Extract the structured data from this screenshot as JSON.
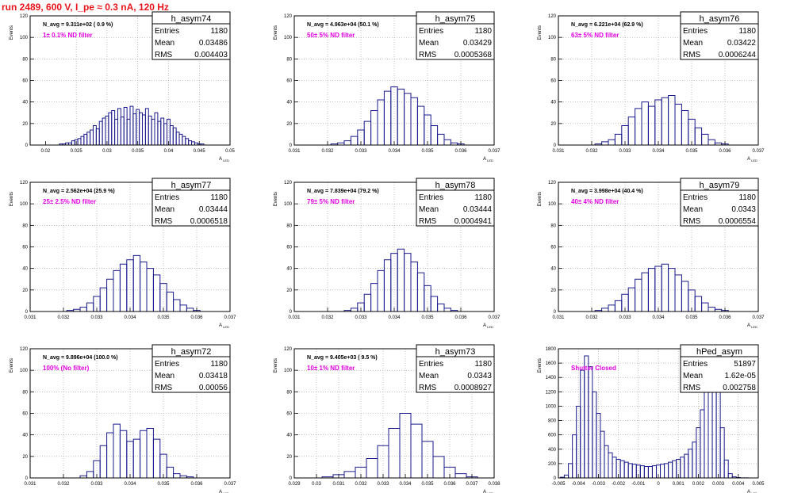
{
  "header": {
    "title": "run 2489,   600 V, I_pe ≈ 0.3 nA, 120 Hz"
  },
  "colors": {
    "title": "#e8141b",
    "histogram": "#1a1a8c",
    "filter_label": "#e000e0",
    "axis": "#000000",
    "grid": "#999999"
  },
  "stats_labels": {
    "entries": "Entries",
    "mean": "Mean",
    "rms": "RMS"
  },
  "chart_data": [
    {
      "type": "bar",
      "name": "h_asym74",
      "navg_text": "N_avg = 9.311e+02 ( 0.9 %)",
      "filter_text": "1± 0.1% ND filter",
      "stats": {
        "entries": "1180",
        "mean": "0.03486",
        "rms": "0.004403"
      },
      "xlabel": "A",
      "xlabel_sub": "LED",
      "ylabel": "Events",
      "xlim": [
        0.0175,
        0.05
      ],
      "ylim": [
        0,
        120
      ],
      "xticks": [
        0.02,
        0.025,
        0.03,
        0.035,
        0.04,
        0.045,
        0.05
      ],
      "xtick_labels": [
        "0.02",
        "0.025",
        "0.03",
        "0.035",
        "0.04",
        "0.045",
        "0.05"
      ],
      "yticks": [
        0,
        20,
        40,
        60,
        80,
        100,
        120
      ],
      "ytick_labels": [
        "0",
        "20",
        "40",
        "60",
        "80",
        "100",
        "120"
      ],
      "x": [
        0.0225,
        0.023,
        0.0235,
        0.024,
        0.0245,
        0.025,
        0.0255,
        0.026,
        0.0265,
        0.027,
        0.0275,
        0.028,
        0.0285,
        0.029,
        0.0295,
        0.03,
        0.0305,
        0.031,
        0.0315,
        0.032,
        0.0325,
        0.033,
        0.0335,
        0.034,
        0.0345,
        0.035,
        0.0355,
        0.036,
        0.0365,
        0.037,
        0.0375,
        0.038,
        0.0385,
        0.039,
        0.0395,
        0.04,
        0.0405,
        0.041,
        0.0415,
        0.042,
        0.0425,
        0.043,
        0.0435,
        0.044,
        0.0445,
        0.045,
        0.0455,
        0.046
      ],
      "y": [
        1,
        1,
        2,
        2,
        4,
        5,
        6,
        8,
        10,
        12,
        14,
        18,
        15,
        22,
        25,
        27,
        30,
        32,
        24,
        34,
        26,
        35,
        24,
        36,
        29,
        33,
        30,
        28,
        34,
        27,
        24,
        30,
        22,
        25,
        20,
        24,
        18,
        16,
        12,
        10,
        8,
        6,
        4,
        3,
        2,
        1,
        1,
        0
      ]
    },
    {
      "type": "bar",
      "name": "h_asym75",
      "navg_text": "N_avg = 4.963e+04 (50.1 %)",
      "filter_text": "50± 5% ND filter",
      "stats": {
        "entries": "1180",
        "mean": "0.03429",
        "rms": "0.0005368"
      },
      "xlabel": "A",
      "xlabel_sub": "LED",
      "ylabel": "Events",
      "xlim": [
        0.031,
        0.037
      ],
      "ylim": [
        0,
        120
      ],
      "xticks": [
        0.031,
        0.032,
        0.033,
        0.034,
        0.035,
        0.036,
        0.037
      ],
      "xtick_labels": [
        "0.031",
        "0.032",
        "0.033",
        "0.034",
        "0.035",
        "0.036",
        "0.037"
      ],
      "yticks": [
        0,
        20,
        40,
        60,
        80,
        100,
        120
      ],
      "ytick_labels": [
        "0",
        "20",
        "40",
        "60",
        "80",
        "100",
        "120"
      ],
      "x": [
        0.0322,
        0.0324,
        0.0326,
        0.0328,
        0.033,
        0.0332,
        0.0334,
        0.0336,
        0.0338,
        0.034,
        0.0342,
        0.0344,
        0.0346,
        0.0348,
        0.035,
        0.0352,
        0.0354,
        0.0356,
        0.0358,
        0.036
      ],
      "y": [
        1,
        2,
        4,
        8,
        14,
        22,
        32,
        42,
        50,
        54,
        52,
        48,
        44,
        36,
        28,
        18,
        10,
        5,
        2,
        1
      ]
    },
    {
      "type": "bar",
      "name": "h_asym76",
      "navg_text": "N_avg = 6.221e+04 (62.9 %)",
      "filter_text": "63± 5% ND filter",
      "stats": {
        "entries": "1180",
        "mean": "0.03422",
        "rms": "0.0006244"
      },
      "xlabel": "A",
      "xlabel_sub": "LED",
      "ylabel": "Events",
      "xlim": [
        0.031,
        0.037
      ],
      "ylim": [
        0,
        120
      ],
      "xticks": [
        0.031,
        0.032,
        0.033,
        0.034,
        0.035,
        0.036,
        0.037
      ],
      "xtick_labels": [
        "0.031",
        "0.032",
        "0.033",
        "0.034",
        "0.035",
        "0.036",
        "0.037"
      ],
      "yticks": [
        0,
        20,
        40,
        60,
        80,
        100,
        120
      ],
      "ytick_labels": [
        "0",
        "20",
        "40",
        "60",
        "80",
        "100",
        "120"
      ],
      "x": [
        0.0322,
        0.0324,
        0.0326,
        0.0328,
        0.033,
        0.0332,
        0.0334,
        0.0336,
        0.0338,
        0.034,
        0.0342,
        0.0344,
        0.0346,
        0.0348,
        0.035,
        0.0352,
        0.0354,
        0.0356,
        0.0358,
        0.036
      ],
      "y": [
        1,
        3,
        5,
        10,
        18,
        26,
        34,
        40,
        36,
        42,
        44,
        46,
        38,
        32,
        24,
        16,
        10,
        5,
        2,
        1
      ]
    },
    {
      "type": "bar",
      "name": "h_asym77",
      "navg_text": "N_avg = 2.562e+04 (25.9 %)",
      "filter_text": "25± 2.5% ND filter",
      "stats": {
        "entries": "1180",
        "mean": "0.03444",
        "rms": "0.0006518"
      },
      "xlabel": "A",
      "xlabel_sub": "LED",
      "ylabel": "Events",
      "xlim": [
        0.031,
        0.037
      ],
      "ylim": [
        0,
        120
      ],
      "xticks": [
        0.031,
        0.032,
        0.033,
        0.034,
        0.035,
        0.036,
        0.037
      ],
      "xtick_labels": [
        "0.031",
        "0.032",
        "0.033",
        "0.034",
        "0.035",
        "0.036",
        "0.037"
      ],
      "yticks": [
        0,
        20,
        40,
        60,
        80,
        100,
        120
      ],
      "ytick_labels": [
        "0",
        "20",
        "40",
        "60",
        "80",
        "100",
        "120"
      ],
      "x": [
        0.0322,
        0.0324,
        0.0326,
        0.0328,
        0.033,
        0.0332,
        0.0334,
        0.0336,
        0.0338,
        0.034,
        0.0342,
        0.0344,
        0.0346,
        0.0348,
        0.035,
        0.0352,
        0.0354,
        0.0356,
        0.0358,
        0.036
      ],
      "y": [
        1,
        2,
        4,
        8,
        14,
        22,
        30,
        38,
        44,
        48,
        52,
        46,
        40,
        34,
        26,
        18,
        11,
        6,
        3,
        1
      ]
    },
    {
      "type": "bar",
      "name": "h_asym78",
      "navg_text": "N_avg = 7.839e+04 (79.2 %)",
      "filter_text": "79± 5% ND filter",
      "stats": {
        "entries": "1180",
        "mean": "0.03444",
        "rms": "0.0004941"
      },
      "xlabel": "A",
      "xlabel_sub": "LED",
      "ylabel": "Events",
      "xlim": [
        0.031,
        0.037
      ],
      "ylim": [
        0,
        120
      ],
      "xticks": [
        0.031,
        0.032,
        0.033,
        0.034,
        0.035,
        0.036,
        0.037
      ],
      "xtick_labels": [
        "0.031",
        "0.032",
        "0.033",
        "0.034",
        "0.035",
        "0.036",
        "0.037"
      ],
      "yticks": [
        0,
        20,
        40,
        60,
        80,
        100,
        120
      ],
      "ytick_labels": [
        "0",
        "20",
        "40",
        "60",
        "80",
        "100",
        "120"
      ],
      "x": [
        0.0326,
        0.0328,
        0.033,
        0.0332,
        0.0334,
        0.0336,
        0.0338,
        0.034,
        0.0342,
        0.0344,
        0.0346,
        0.0348,
        0.035,
        0.0352,
        0.0354,
        0.0356,
        0.0358
      ],
      "y": [
        1,
        3,
        8,
        16,
        26,
        38,
        48,
        54,
        58,
        54,
        46,
        36,
        24,
        14,
        7,
        3,
        1
      ]
    },
    {
      "type": "bar",
      "name": "h_asym79",
      "navg_text": "N_avg = 3.998e+04 (40.4 %)",
      "filter_text": "40± 4% ND filter",
      "stats": {
        "entries": "1180",
        "mean": "0.0343",
        "rms": "0.0006554"
      },
      "xlabel": "A",
      "xlabel_sub": "LED",
      "ylabel": "Events",
      "xlim": [
        0.031,
        0.037
      ],
      "ylim": [
        0,
        120
      ],
      "xticks": [
        0.031,
        0.032,
        0.033,
        0.034,
        0.035,
        0.036,
        0.037
      ],
      "xtick_labels": [
        "0.031",
        "0.032",
        "0.033",
        "0.034",
        "0.035",
        "0.036",
        "0.037"
      ],
      "yticks": [
        0,
        20,
        40,
        60,
        80,
        100,
        120
      ],
      "ytick_labels": [
        "0",
        "20",
        "40",
        "60",
        "80",
        "100",
        "120"
      ],
      "x": [
        0.0322,
        0.0324,
        0.0326,
        0.0328,
        0.033,
        0.0332,
        0.0334,
        0.0336,
        0.0338,
        0.034,
        0.0342,
        0.0344,
        0.0346,
        0.0348,
        0.035,
        0.0352,
        0.0354,
        0.0356,
        0.0358,
        0.036
      ],
      "y": [
        1,
        3,
        6,
        10,
        16,
        22,
        30,
        36,
        40,
        42,
        44,
        40,
        34,
        28,
        20,
        14,
        8,
        4,
        2,
        1
      ]
    },
    {
      "type": "bar",
      "name": "h_asym72",
      "navg_text": "N_avg = 9.896e+04 (100.0 %)",
      "filter_text": "100% (No filter)",
      "stats": {
        "entries": "1180",
        "mean": "0.03418",
        "rms": "0.00056"
      },
      "xlabel": "A",
      "xlabel_sub": "LED",
      "ylabel": "Events",
      "xlim": [
        0.031,
        0.037
      ],
      "ylim": [
        0,
        120
      ],
      "xticks": [
        0.031,
        0.032,
        0.033,
        0.034,
        0.035,
        0.036,
        0.037
      ],
      "xtick_labels": [
        "0.031",
        "0.032",
        "0.033",
        "0.034",
        "0.035",
        "0.036",
        "0.037"
      ],
      "yticks": [
        0,
        20,
        40,
        60,
        80,
        100,
        120
      ],
      "ytick_labels": [
        "0",
        "20",
        "40",
        "60",
        "80",
        "100",
        "120"
      ],
      "x": [
        0.0326,
        0.0328,
        0.033,
        0.0332,
        0.0334,
        0.0336,
        0.0338,
        0.034,
        0.0342,
        0.0344,
        0.0346,
        0.0348,
        0.035,
        0.0352,
        0.0354,
        0.0356,
        0.0358
      ],
      "y": [
        2,
        6,
        16,
        30,
        42,
        50,
        44,
        34,
        36,
        44,
        46,
        36,
        22,
        10,
        4,
        2,
        1
      ]
    },
    {
      "type": "bar",
      "name": "h_asym73",
      "navg_text": "N_avg = 9.405e+03 ( 9.5 %)",
      "filter_text": "10± 1% ND filter",
      "stats": {
        "entries": "1180",
        "mean": "0.0343",
        "rms": "0.0008927"
      },
      "xlabel": "A",
      "xlabel_sub": "LED",
      "ylabel": "Events",
      "xlim": [
        0.029,
        0.038
      ],
      "ylim": [
        0,
        120
      ],
      "xticks": [
        0.029,
        0.03,
        0.031,
        0.032,
        0.033,
        0.034,
        0.035,
        0.036,
        0.037,
        0.038
      ],
      "xtick_labels": [
        "0.029",
        "0.03",
        "0.031",
        "0.032",
        "0.033",
        "0.034",
        "0.035",
        "0.036",
        "0.037",
        "0.038"
      ],
      "yticks": [
        0,
        20,
        40,
        60,
        80,
        100,
        120
      ],
      "ytick_labels": [
        "0",
        "20",
        "40",
        "60",
        "80",
        "100",
        "120"
      ],
      "x": [
        0.0305,
        0.031,
        0.0315,
        0.032,
        0.0325,
        0.033,
        0.0335,
        0.034,
        0.0345,
        0.035,
        0.0355,
        0.036,
        0.0365,
        0.037
      ],
      "y": [
        1,
        3,
        6,
        10,
        18,
        30,
        46,
        60,
        50,
        34,
        20,
        10,
        4,
        1
      ]
    },
    {
      "type": "bar",
      "name": "hPed_asym",
      "navg_text": "",
      "filter_text": "Shutter Closed",
      "stats": {
        "entries": "51897",
        "mean": "1.62e-05",
        "rms": "0.002758"
      },
      "xlabel": "A",
      "xlabel_sub": "LED",
      "ylabel": "Events",
      "xlim": [
        -0.005,
        0.005
      ],
      "ylim": [
        0,
        1800
      ],
      "xticks": [
        -0.005,
        -0.004,
        -0.003,
        -0.002,
        -0.001,
        0,
        0.001,
        0.002,
        0.003,
        0.004,
        0.005
      ],
      "xtick_labels": [
        "-0.005",
        "-0.004",
        "-0.003",
        "-0.002",
        "-0.001",
        "0",
        "0.001",
        "0.002",
        "0.003",
        "0.004",
        "0.005"
      ],
      "yticks": [
        0,
        200,
        400,
        600,
        800,
        1000,
        1200,
        1400,
        1600,
        1800
      ],
      "ytick_labels": [
        "0",
        "200",
        "400",
        "600",
        "800",
        "1000",
        "1200",
        "1400",
        "1600",
        "1800"
      ],
      "x": [
        -0.0048,
        -0.0046,
        -0.0044,
        -0.0042,
        -0.004,
        -0.0038,
        -0.0036,
        -0.0034,
        -0.0032,
        -0.003,
        -0.0028,
        -0.0026,
        -0.0024,
        -0.0022,
        -0.002,
        -0.0018,
        -0.0016,
        -0.0014,
        -0.0012,
        -0.001,
        -0.0008,
        -0.0006,
        -0.0004,
        -0.0002,
        0,
        0.0002,
        0.0004,
        0.0006,
        0.0008,
        0.001,
        0.0012,
        0.0014,
        0.0016,
        0.0018,
        0.002,
        0.0022,
        0.0024,
        0.0026,
        0.0028,
        0.003,
        0.0032,
        0.0034,
        0.0036,
        0.0038,
        0.004,
        0.0042,
        0.0044
      ],
      "y": [
        10,
        40,
        200,
        600,
        1000,
        1500,
        1700,
        1550,
        1200,
        900,
        650,
        450,
        350,
        290,
        260,
        240,
        220,
        200,
        190,
        180,
        170,
        160,
        160,
        170,
        180,
        190,
        200,
        220,
        240,
        260,
        290,
        330,
        400,
        500,
        700,
        950,
        1250,
        1550,
        1700,
        1300,
        700,
        250,
        60,
        15,
        5,
        2,
        1
      ]
    }
  ]
}
